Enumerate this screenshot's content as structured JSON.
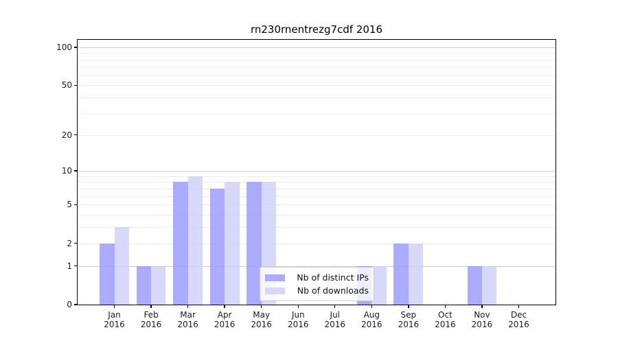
{
  "chart_data": {
    "type": "bar",
    "title": "rn230rnentrezg7cdf 2016",
    "categories": [
      "Jan",
      "Feb",
      "Mar",
      "Apr",
      "May",
      "Jun",
      "Jul",
      "Aug",
      "Sep",
      "Oct",
      "Nov",
      "Dec"
    ],
    "x_year_label": "2016",
    "series": [
      {
        "name": "Nb of distinct IPs",
        "color": "#9696ff",
        "fill_alpha": 0.8,
        "values": [
          2,
          1,
          8,
          7,
          8,
          0,
          0,
          1,
          2,
          0,
          1,
          0
        ]
      },
      {
        "name": "Nb of downloads",
        "color": "#cdcdfa",
        "fill_alpha": 0.78,
        "values": [
          3,
          1,
          9,
          8,
          8,
          0,
          0,
          1,
          2,
          0,
          1,
          0
        ]
      }
    ],
    "y_scale": "log1p",
    "ylim": [
      0,
      116
    ],
    "y_axis_ticks": [
      0,
      1,
      2,
      5,
      10,
      20,
      50,
      100
    ],
    "y_major_gridlines": [
      1,
      10,
      100
    ],
    "y_minor_gridlines": [
      2,
      3,
      4,
      5,
      6,
      7,
      8,
      9,
      20,
      30,
      40,
      50,
      60,
      70,
      80,
      90
    ],
    "grid": "on",
    "legend_position": "inside-lower-center",
    "colors": {
      "major_grid": "#cccccc",
      "minor_grid": "#ebebeb",
      "spine": "#000000",
      "tick_text": "#1a1a1a",
      "legend_border": "#cccccc"
    }
  }
}
